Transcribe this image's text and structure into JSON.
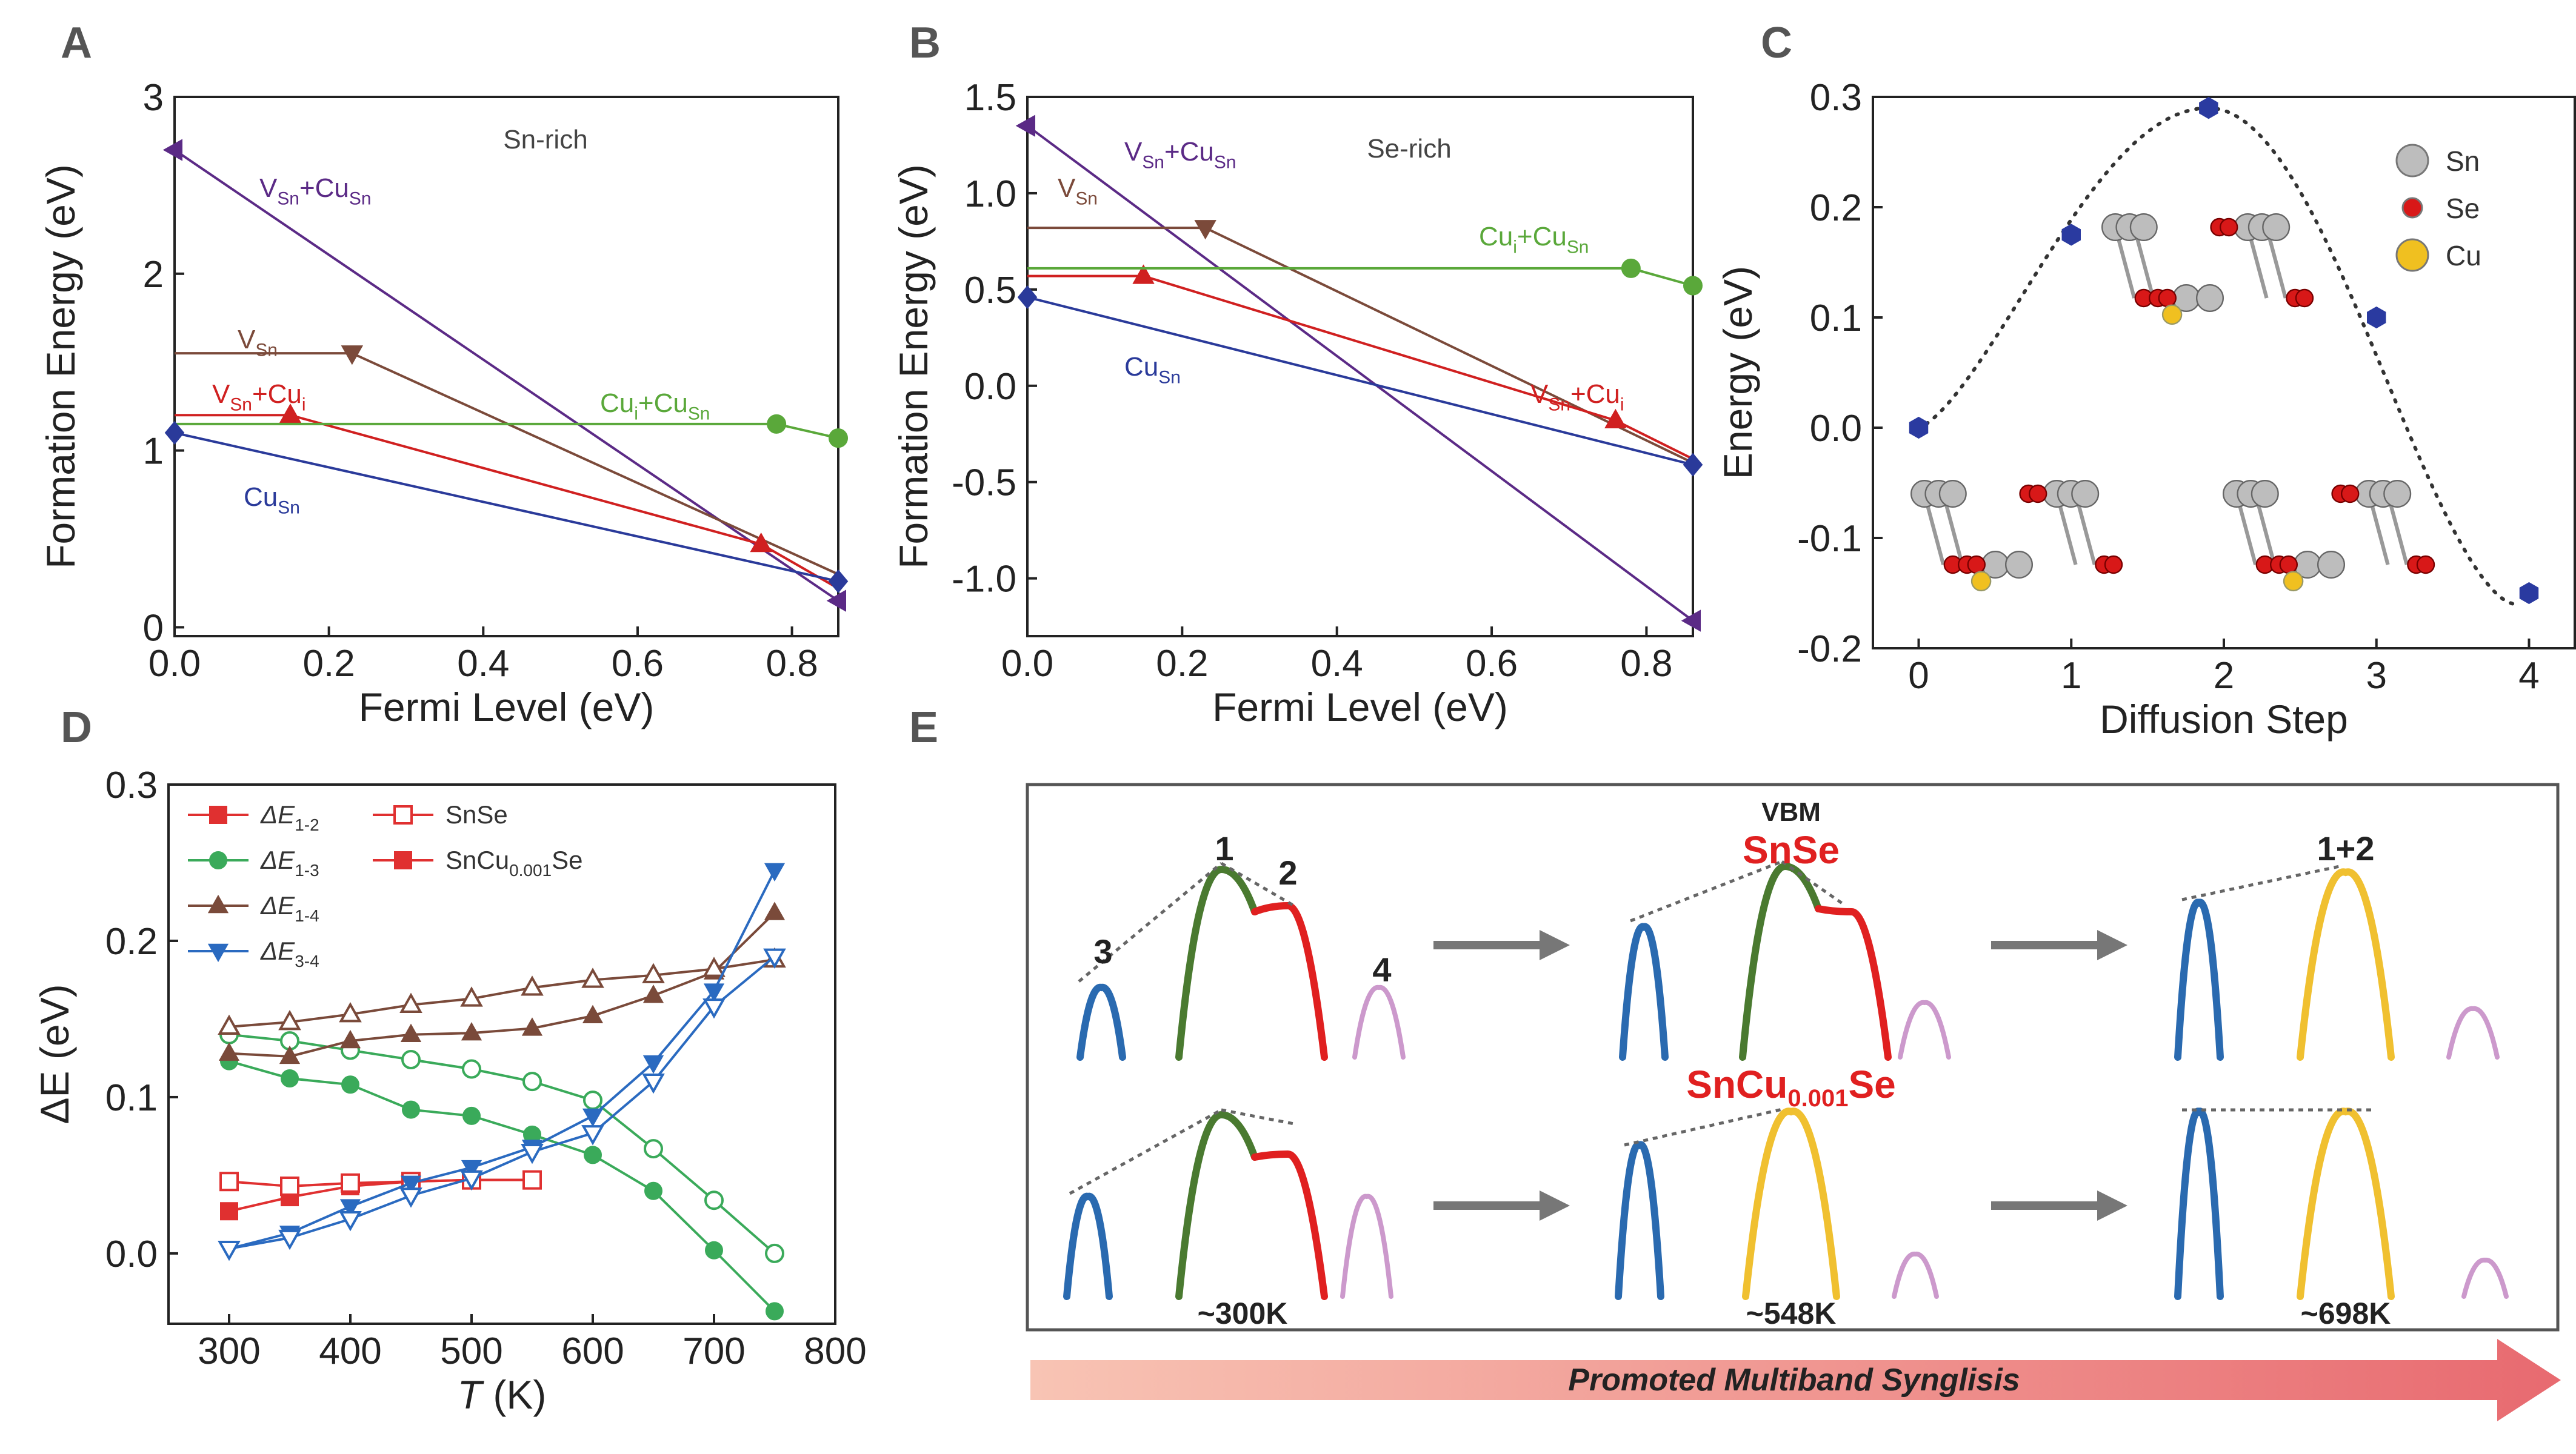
{
  "chart_data": [
    {
      "panel": "A",
      "type": "line",
      "xlabel": "Fermi Level (eV)",
      "ylabel": "Formation Energy (eV)",
      "xlim": [
        0,
        0.86
      ],
      "ylim": [
        -0.05,
        3
      ],
      "xticks": [
        "0.0",
        "0.2",
        "0.4",
        "0.6",
        "0.8"
      ],
      "yticks": [
        "0",
        "1",
        "2",
        "3"
      ],
      "annotation": "Sn-rich",
      "series": [
        {
          "name": "VSn+CuSn",
          "label": {
            "main": "V",
            "sub1": "Sn",
            "mid": "+Cu",
            "sub2": "Sn"
          },
          "color": "#5b2a86",
          "marker": "tri-left",
          "x": [
            0,
            0.86
          ],
          "y": [
            2.7,
            0.15
          ],
          "markers_x": [
            0,
            0.86
          ]
        },
        {
          "name": "VSn",
          "label": {
            "main": "V",
            "sub1": "Sn"
          },
          "color": "#7b4a3a",
          "marker": "tri-down",
          "x": [
            0,
            0.23,
            0.86
          ],
          "y": [
            1.55,
            1.55,
            0.3
          ],
          "markers_x": [
            0.23
          ]
        },
        {
          "name": "VSn+Cui",
          "label": {
            "main": "V",
            "sub1": "Sn",
            "mid": "+Cu",
            "sub2": "i"
          },
          "color": "#d02020",
          "marker": "tri-up",
          "x": [
            0,
            0.15,
            0.76,
            0.86
          ],
          "y": [
            1.2,
            1.2,
            0.47,
            0.22
          ],
          "markers_x": [
            0.15,
            0.76
          ]
        },
        {
          "name": "Cui+CuSn",
          "label": {
            "main": "Cu",
            "sub1": "i",
            "mid": "+Cu",
            "sub2": "Sn"
          },
          "color": "#5aa83a",
          "marker": "circle",
          "x": [
            0,
            0.78,
            0.86
          ],
          "y": [
            1.15,
            1.15,
            1.07
          ],
          "markers_x": [
            0.78,
            0.86
          ]
        },
        {
          "name": "CuSn",
          "label": {
            "main": "Cu",
            "sub1": "Sn"
          },
          "color": "#2a3a9a",
          "marker": "diamond",
          "x": [
            0,
            0.86
          ],
          "y": [
            1.1,
            0.26
          ],
          "markers_x": [
            0,
            0.86
          ]
        }
      ]
    },
    {
      "panel": "B",
      "type": "line",
      "xlabel": "Fermi Level (eV)",
      "ylabel": "Formation Energy (eV)",
      "xlim": [
        0,
        0.86
      ],
      "ylim": [
        -1.3,
        1.5
      ],
      "xticks": [
        "0.0",
        "0.2",
        "0.4",
        "0.6",
        "0.8"
      ],
      "yticks": [
        "-1.0",
        "-0.5",
        "0.0",
        "0.5",
        "1.0",
        "1.5"
      ],
      "annotation": "Se-rich",
      "series": [
        {
          "name": "VSn+CuSn",
          "label": {
            "main": "V",
            "sub1": "Sn",
            "mid": "+Cu",
            "sub2": "Sn"
          },
          "color": "#5b2a86",
          "marker": "tri-left",
          "x": [
            0,
            0.86
          ],
          "y": [
            1.35,
            -1.22
          ],
          "markers_x": [
            0,
            0.86
          ]
        },
        {
          "name": "VSn",
          "label": {
            "main": "V",
            "sub1": "Sn"
          },
          "color": "#7b4a3a",
          "marker": "tri-down",
          "x": [
            0,
            0.23,
            0.86
          ],
          "y": [
            0.82,
            0.82,
            -0.4
          ],
          "markers_x": [
            0.23
          ]
        },
        {
          "name": "VSn+Cui",
          "label": {
            "main": "V",
            "sub1": "Sn",
            "mid": "+Cu",
            "sub2": "i"
          },
          "color": "#d02020",
          "marker": "tri-up",
          "x": [
            0,
            0.15,
            0.76,
            0.86
          ],
          "y": [
            0.57,
            0.57,
            -0.18,
            -0.38
          ],
          "markers_x": [
            0.15,
            0.76
          ]
        },
        {
          "name": "Cui+CuSn",
          "label": {
            "main": "Cu",
            "sub1": "i",
            "mid": "+Cu",
            "sub2": "Sn"
          },
          "color": "#5aa83a",
          "marker": "circle",
          "x": [
            0,
            0.78,
            0.86
          ],
          "y": [
            0.61,
            0.61,
            0.52
          ],
          "markers_x": [
            0.78,
            0.86
          ]
        },
        {
          "name": "CuSn",
          "label": {
            "main": "Cu",
            "sub1": "Sn"
          },
          "color": "#2a3a9a",
          "marker": "diamond",
          "x": [
            0,
            0.86
          ],
          "y": [
            0.46,
            -0.41
          ],
          "markers_x": [
            0,
            0.86
          ]
        }
      ]
    },
    {
      "panel": "C",
      "type": "scatter",
      "xlabel": "Diffusion Step",
      "ylabel": "Energy (eV)",
      "xlim": [
        -0.3,
        4.3
      ],
      "ylim": [
        -0.2,
        0.3
      ],
      "xticks": [
        "0",
        "1",
        "2",
        "3",
        "4"
      ],
      "yticks": [
        "-0.2",
        "-0.1",
        "0.0",
        "0.1",
        "0.2",
        "0.3"
      ],
      "x": [
        0,
        1,
        1.9,
        3,
        4
      ],
      "y": [
        0.0,
        0.175,
        0.29,
        0.1,
        -0.15
      ],
      "legend": [
        {
          "label": "Sn",
          "color": "#bdbdbd"
        },
        {
          "label": "Se",
          "color": "#d81818"
        },
        {
          "label": "Cu",
          "color": "#f0c020"
        }
      ]
    },
    {
      "panel": "D",
      "type": "line",
      "xlabel": "T (K)",
      "ylabel": "ΔE (eV)",
      "xlim": [
        250,
        800
      ],
      "ylim": [
        -0.045,
        0.3
      ],
      "xticks": [
        "300",
        "400",
        "500",
        "600",
        "700",
        "800"
      ],
      "yticks": [
        "0.0",
        "0.1",
        "0.2",
        "0.3"
      ],
      "x": [
        300,
        350,
        400,
        450,
        500,
        550,
        600,
        650,
        700,
        750
      ],
      "series": [
        {
          "name": "ΔE1-2",
          "label": {
            "main": "ΔE",
            "sub1": "1-2"
          },
          "color": "#e03030",
          "marker": "square",
          "sample": "SnCu0.001Se",
          "x": [
            300,
            350,
            400,
            450,
            500,
            550
          ],
          "y": [
            0.027,
            0.036,
            0.043,
            0.046,
            0.047,
            0.047
          ]
        },
        {
          "name": "ΔE1-2 SnSe",
          "color": "#e03030",
          "marker": "square-open",
          "sample": "SnSe",
          "x": [
            300,
            350,
            400,
            450,
            500,
            550
          ],
          "y": [
            0.046,
            0.043,
            0.045,
            0.046,
            0.047,
            0.047
          ]
        },
        {
          "name": "ΔE1-3",
          "label": {
            "main": "ΔE",
            "sub1": "1-3"
          },
          "color": "#3aaa5a",
          "marker": "circle",
          "sample": "SnCu0.001Se",
          "x": [
            300,
            350,
            400,
            450,
            500,
            550,
            600,
            650,
            700,
            750
          ],
          "y": [
            0.123,
            0.112,
            0.108,
            0.092,
            0.088,
            0.076,
            0.063,
            0.04,
            0.002,
            -0.037
          ]
        },
        {
          "name": "ΔE1-3 SnSe",
          "color": "#3aaa5a",
          "marker": "circle-open",
          "sample": "SnSe",
          "x": [
            300,
            350,
            400,
            450,
            500,
            550,
            600,
            650,
            700,
            750
          ],
          "y": [
            0.14,
            0.136,
            0.13,
            0.124,
            0.118,
            0.11,
            0.098,
            0.067,
            0.034,
            0.0
          ]
        },
        {
          "name": "ΔE1-4",
          "label": {
            "main": "ΔE",
            "sub1": "1-4"
          },
          "color": "#7a4a3a",
          "marker": "tri-up",
          "sample": "SnCu0.001Se",
          "x": [
            300,
            350,
            400,
            450,
            500,
            550,
            600,
            650,
            700,
            750
          ],
          "y": [
            0.128,
            0.126,
            0.136,
            0.14,
            0.141,
            0.144,
            0.152,
            0.165,
            0.18,
            0.218
          ]
        },
        {
          "name": "ΔE1-4 SnSe",
          "color": "#7a4a3a",
          "marker": "tri-up-open",
          "sample": "SnSe",
          "x": [
            300,
            350,
            400,
            450,
            500,
            550,
            600,
            650,
            700,
            750
          ],
          "y": [
            0.145,
            0.148,
            0.153,
            0.159,
            0.163,
            0.17,
            0.175,
            0.178,
            0.182,
            0.188
          ]
        },
        {
          "name": "ΔE3-4",
          "label": {
            "main": "ΔE",
            "sub1": "3-4"
          },
          "color": "#2a6ac0",
          "marker": "tri-down",
          "sample": "SnCu0.001Se",
          "x": [
            300,
            350,
            400,
            450,
            500,
            550,
            600,
            650,
            700,
            750
          ],
          "y": [
            0.003,
            0.013,
            0.03,
            0.045,
            0.055,
            0.068,
            0.088,
            0.122,
            0.168,
            0.245
          ]
        },
        {
          "name": "ΔE3-4 SnSe",
          "color": "#2a6ac0",
          "marker": "tri-down-open",
          "sample": "SnSe",
          "x": [
            300,
            350,
            400,
            450,
            500,
            550,
            600,
            650,
            700,
            750
          ],
          "y": [
            0.003,
            0.01,
            0.022,
            0.037,
            0.048,
            0.065,
            0.077,
            0.11,
            0.158,
            0.19
          ]
        }
      ],
      "legend_right": [
        {
          "label": "SnSe",
          "marker": "square-open",
          "color": "#e03030"
        },
        {
          "label": "SnCu",
          "sub": "0.001",
          "tail": "Se",
          "marker": "square",
          "color": "#e03030"
        }
      ]
    }
  ],
  "panels": {
    "A": "A",
    "B": "B",
    "C": "C",
    "D": "D",
    "E": "E"
  },
  "schematic": {
    "vbm_label": "VBM",
    "snse_label": "SnSe",
    "sncu_label_main": "SnCu",
    "sncu_label_sub": "0.001",
    "sncu_label_tail": "Se",
    "band_labels": [
      "1",
      "2",
      "3",
      "4",
      "1+2"
    ],
    "temps": [
      "~300K",
      "~548K",
      "~698K"
    ],
    "arrow_text": "Promoted Multiband Synglisis",
    "colors": {
      "band1": "#4a7a30",
      "band2": "#e02020",
      "band3": "#2a6ab0",
      "band4": "#cc99cc",
      "merged": "#f0c030"
    }
  }
}
